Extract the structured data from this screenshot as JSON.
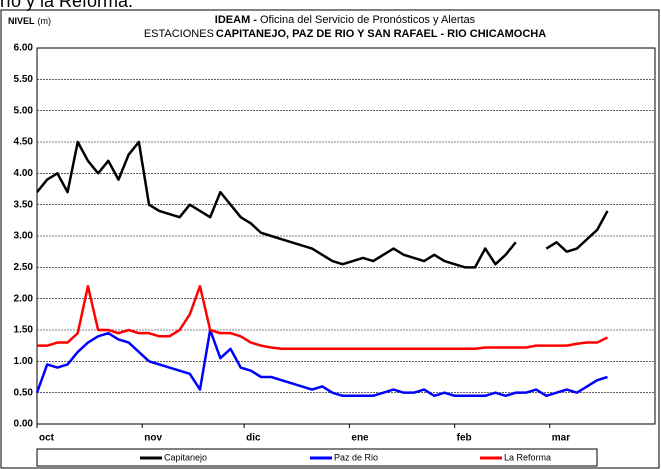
{
  "page_caption": "río y la Reforma.",
  "chart_data": {
    "type": "line",
    "title_bold": "IDEAM -",
    "title": "Oficina del Servicio de Pronósticos y Alertas",
    "subtitle_prefix": "ESTACIONES",
    "subtitle": "CAPITANEJO, PAZ DE RIO Y SAN RAFAEL -  RIO CHICAMOCHA",
    "y_label": "NIVEL",
    "y_unit": "(m)",
    "x": [
      0,
      3,
      6,
      9,
      12,
      15,
      18,
      21,
      24,
      27,
      30,
      33,
      36,
      39,
      42,
      45,
      48,
      51,
      54,
      57,
      60,
      63,
      66,
      69,
      72,
      75,
      78,
      81,
      84,
      87,
      90,
      93,
      96,
      99,
      102,
      105,
      108,
      111,
      114,
      117,
      120,
      123,
      126,
      129,
      132,
      135,
      138,
      141,
      144,
      147,
      150,
      153,
      156,
      159,
      162,
      165,
      168
    ],
    "xlim": [
      0,
      182
    ],
    "xticks": [
      {
        "value": 0,
        "label": "oct"
      },
      {
        "value": 31,
        "label": "nov"
      },
      {
        "value": 61,
        "label": "dic"
      },
      {
        "value": 92,
        "label": "ene"
      },
      {
        "value": 123,
        "label": "feb"
      },
      {
        "value": 151,
        "label": "mar"
      }
    ],
    "ylim": [
      0,
      6
    ],
    "yticks": [
      {
        "value": 0,
        "label": "0.00"
      },
      {
        "value": 0.5,
        "label": "0.50"
      },
      {
        "value": 1,
        "label": "1.00"
      },
      {
        "value": 1.5,
        "label": "1.50"
      },
      {
        "value": 2,
        "label": "2.00"
      },
      {
        "value": 2.5,
        "label": "2.50"
      },
      {
        "value": 3,
        "label": "3.00"
      },
      {
        "value": 3.5,
        "label": "3.50"
      },
      {
        "value": 4,
        "label": "4.00"
      },
      {
        "value": 4.5,
        "label": "4.50"
      },
      {
        "value": 5,
        "label": "5.00"
      },
      {
        "value": 5.5,
        "label": "5.50"
      },
      {
        "value": 6,
        "label": "6.00"
      }
    ],
    "grid": true,
    "legend": "bottom",
    "series": [
      {
        "name": "Capitanejo",
        "color": "#000000",
        "values": [
          3.7,
          3.9,
          4.0,
          3.7,
          4.5,
          4.2,
          4.0,
          4.2,
          3.9,
          4.3,
          4.5,
          3.5,
          3.4,
          3.35,
          3.3,
          3.5,
          3.4,
          3.3,
          3.7,
          3.5,
          3.3,
          3.2,
          3.05,
          3.0,
          2.95,
          2.9,
          2.85,
          2.8,
          2.7,
          2.6,
          2.55,
          2.6,
          2.65,
          2.6,
          2.7,
          2.8,
          2.7,
          2.65,
          2.6,
          2.7,
          2.6,
          2.55,
          2.5,
          2.5,
          2.8,
          2.55,
          2.7,
          2.9,
          null,
          null,
          2.8,
          2.9,
          2.75,
          2.8,
          2.95,
          3.1,
          3.4
        ]
      },
      {
        "name": "Paz de Rio",
        "color": "#0000ff",
        "values": [
          0.5,
          0.95,
          0.9,
          0.95,
          1.15,
          1.3,
          1.4,
          1.45,
          1.35,
          1.3,
          1.15,
          1.0,
          0.95,
          0.9,
          0.85,
          0.8,
          0.55,
          1.5,
          1.05,
          1.2,
          0.9,
          0.85,
          0.75,
          0.75,
          0.7,
          0.65,
          0.6,
          0.55,
          0.6,
          0.5,
          0.45,
          0.45,
          0.45,
          0.45,
          0.5,
          0.55,
          0.5,
          0.5,
          0.55,
          0.45,
          0.5,
          0.45,
          0.45,
          0.45,
          0.45,
          0.5,
          0.45,
          0.5,
          0.5,
          0.55,
          0.45,
          0.5,
          0.55,
          0.5,
          0.6,
          0.7,
          0.75
        ]
      },
      {
        "name": "La Reforma",
        "color": "#ff0000",
        "values": [
          1.25,
          1.25,
          1.3,
          1.3,
          1.45,
          2.2,
          1.5,
          1.5,
          1.45,
          1.5,
          1.45,
          1.45,
          1.4,
          1.4,
          1.5,
          1.75,
          2.2,
          1.5,
          1.45,
          1.45,
          1.4,
          1.3,
          1.25,
          1.22,
          1.2,
          1.2,
          1.2,
          1.2,
          1.2,
          1.2,
          1.2,
          1.2,
          1.2,
          1.2,
          1.2,
          1.2,
          1.2,
          1.2,
          1.2,
          1.2,
          1.2,
          1.2,
          1.2,
          1.2,
          1.22,
          1.22,
          1.22,
          1.22,
          1.22,
          1.25,
          1.25,
          1.25,
          1.25,
          1.28,
          1.3,
          1.3,
          1.38
        ]
      }
    ]
  }
}
